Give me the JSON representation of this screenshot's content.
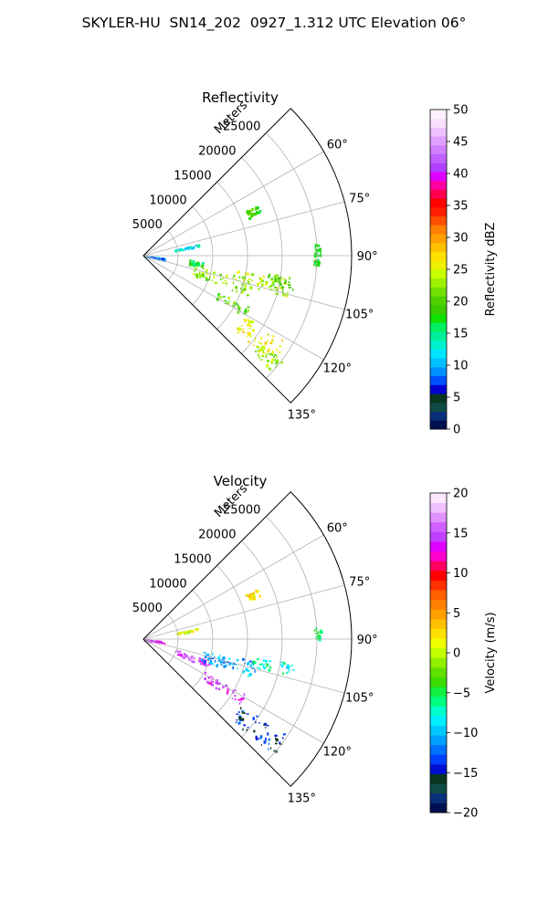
{
  "figure": {
    "suptitle": "SKYLER-HU  SN14_202  0927_1.312 UTC Elevation 06°"
  },
  "chart_data": [
    {
      "type": "heatmap",
      "projection": "polar-sector",
      "title": "Reflectivity",
      "radial_label": "Meters",
      "range_ticks": [
        5000,
        10000,
        15000,
        20000,
        25000
      ],
      "range_labels": [
        "5000",
        "10000",
        "15000",
        "20000",
        "25000"
      ],
      "rlim": [
        0,
        30000
      ],
      "azimuth_range": [
        45,
        135
      ],
      "azimuth_ticks": [
        60,
        75,
        90,
        105,
        120,
        135
      ],
      "azimuth_labels": [
        "60°",
        "75°",
        "90°",
        "105°",
        "120°",
        "135°"
      ],
      "grid": true,
      "colorbar": {
        "label": "Reflectivity dBZ",
        "vmin": 0,
        "vmax": 50,
        "ticks": [
          0,
          5,
          10,
          15,
          20,
          25,
          30,
          35,
          40,
          45,
          50
        ],
        "tick_labels": [
          "0",
          "5",
          "10",
          "15",
          "20",
          "25",
          "30",
          "35",
          "40",
          "45",
          "50"
        ],
        "colors": [
          "#001050",
          "#0a2f7a",
          "#0f4a45",
          "#08361f",
          "#0000d0",
          "#0050ff",
          "#0090ff",
          "#00c0ff",
          "#00e5ff",
          "#00f0d0",
          "#00f09a",
          "#00f060",
          "#10e000",
          "#3acc00",
          "#50d000",
          "#70e000",
          "#9cf000",
          "#c8ff00",
          "#eef000",
          "#ffe000",
          "#ffc000",
          "#ffa000",
          "#ff8000",
          "#ff5000",
          "#ff2000",
          "#ff0000",
          "#ff0050",
          "#ff00a0",
          "#e000ff",
          "#b040ff",
          "#c060ff",
          "#d080ff",
          "#e0a0ff",
          "#eec0ff",
          "#f8e0ff",
          "#fff0ff"
        ]
      },
      "echo_regions": [
        {
          "az_start": 78,
          "az_end": 80,
          "r_start": 4500,
          "r_end": 8000,
          "level": 13
        },
        {
          "az_start": 96,
          "az_end": 100,
          "r_start": 0,
          "r_end": 3200,
          "level": 9
        },
        {
          "az_start": 95,
          "az_end": 101,
          "r_start": 6500,
          "r_end": 8500,
          "level": 17
        },
        {
          "az_start": 102,
          "az_end": 111,
          "r_start": 7500,
          "r_end": 16000,
          "level": 22
        },
        {
          "az_start": 99,
          "az_end": 106,
          "r_start": 13500,
          "r_end": 21500,
          "level": 24
        },
        {
          "az_start": 98,
          "az_end": 104,
          "r_start": 18000,
          "r_end": 22000,
          "level": 21
        },
        {
          "az_start": 116,
          "az_end": 121,
          "r_start": 12000,
          "r_end": 17000,
          "level": 20
        },
        {
          "az_start": 121,
          "az_end": 130,
          "r_start": 17000,
          "r_end": 24000,
          "level": 26
        },
        {
          "az_start": 127,
          "az_end": 132,
          "r_start": 21000,
          "r_end": 25000,
          "level": 22
        },
        {
          "az_start": 66,
          "az_end": 70,
          "r_start": 16000,
          "r_end": 18000,
          "level": 19
        },
        {
          "az_start": 86,
          "az_end": 90,
          "r_start": 24500,
          "r_end": 25500,
          "level": 18
        },
        {
          "az_start": 91,
          "az_end": 93,
          "r_start": 24500,
          "r_end": 25200,
          "level": 18
        }
      ]
    },
    {
      "type": "heatmap",
      "projection": "polar-sector",
      "title": "Velocity",
      "radial_label": "Meters",
      "range_ticks": [
        5000,
        10000,
        15000,
        20000,
        25000
      ],
      "range_labels": [
        "5000",
        "10000",
        "15000",
        "20000",
        "25000"
      ],
      "rlim": [
        0,
        30000
      ],
      "azimuth_range": [
        45,
        135
      ],
      "azimuth_ticks": [
        60,
        75,
        90,
        105,
        120,
        135
      ],
      "azimuth_labels": [
        "60°",
        "75°",
        "90°",
        "105°",
        "120°",
        "135°"
      ],
      "grid": true,
      "colorbar": {
        "label": "Velocity (m/s)",
        "vmin": -20,
        "vmax": 20,
        "ticks": [
          -20,
          -15,
          -10,
          -5,
          0,
          5,
          10,
          15,
          20
        ],
        "tick_labels": [
          "−20",
          "−15",
          "−10",
          "−5",
          "0",
          "5",
          "10",
          "15",
          "20"
        ],
        "colors": [
          "#001050",
          "#0a2f7a",
          "#0f4a45",
          "#08361f",
          "#0010d0",
          "#0040ff",
          "#0070ff",
          "#00a0ff",
          "#00c8ff",
          "#00eeff",
          "#00ffcc",
          "#00ff80",
          "#10f040",
          "#3cdc00",
          "#60e000",
          "#90f000",
          "#c0ff00",
          "#f0ff00",
          "#ffe000",
          "#ffc000",
          "#ffa000",
          "#ff8000",
          "#ff6000",
          "#ff3000",
          "#ff0000",
          "#ff0060",
          "#ff00d0",
          "#e000ff",
          "#c040ff",
          "#d060ff",
          "#e090ff",
          "#f0c0ff",
          "#ffe8ff"
        ]
      },
      "echo_regions": [
        {
          "az_start": 78,
          "az_end": 80,
          "r_start": 4500,
          "r_end": 8000,
          "level": 1
        },
        {
          "az_start": 96,
          "az_end": 100,
          "r_start": 0,
          "r_end": 3200,
          "level": 14
        },
        {
          "az_start": 108,
          "az_end": 114,
          "r_start": 4500,
          "r_end": 10000,
          "level": 15
        },
        {
          "az_start": 101,
          "az_end": 110,
          "r_start": 8500,
          "r_end": 17000,
          "level": -11
        },
        {
          "az_start": 99,
          "az_end": 104,
          "r_start": 16000,
          "r_end": 22000,
          "level": -7
        },
        {
          "az_start": 118,
          "az_end": 124,
          "r_start": 10000,
          "r_end": 17000,
          "level": 14
        },
        {
          "az_start": 124,
          "az_end": 132,
          "r_start": 17000,
          "r_end": 25000,
          "level": -14
        },
        {
          "az_start": 66,
          "az_end": 70,
          "r_start": 16000,
          "r_end": 18000,
          "level": 2
        },
        {
          "az_start": 86,
          "az_end": 90,
          "r_start": 24500,
          "r_end": 25500,
          "level": -6
        }
      ]
    }
  ]
}
